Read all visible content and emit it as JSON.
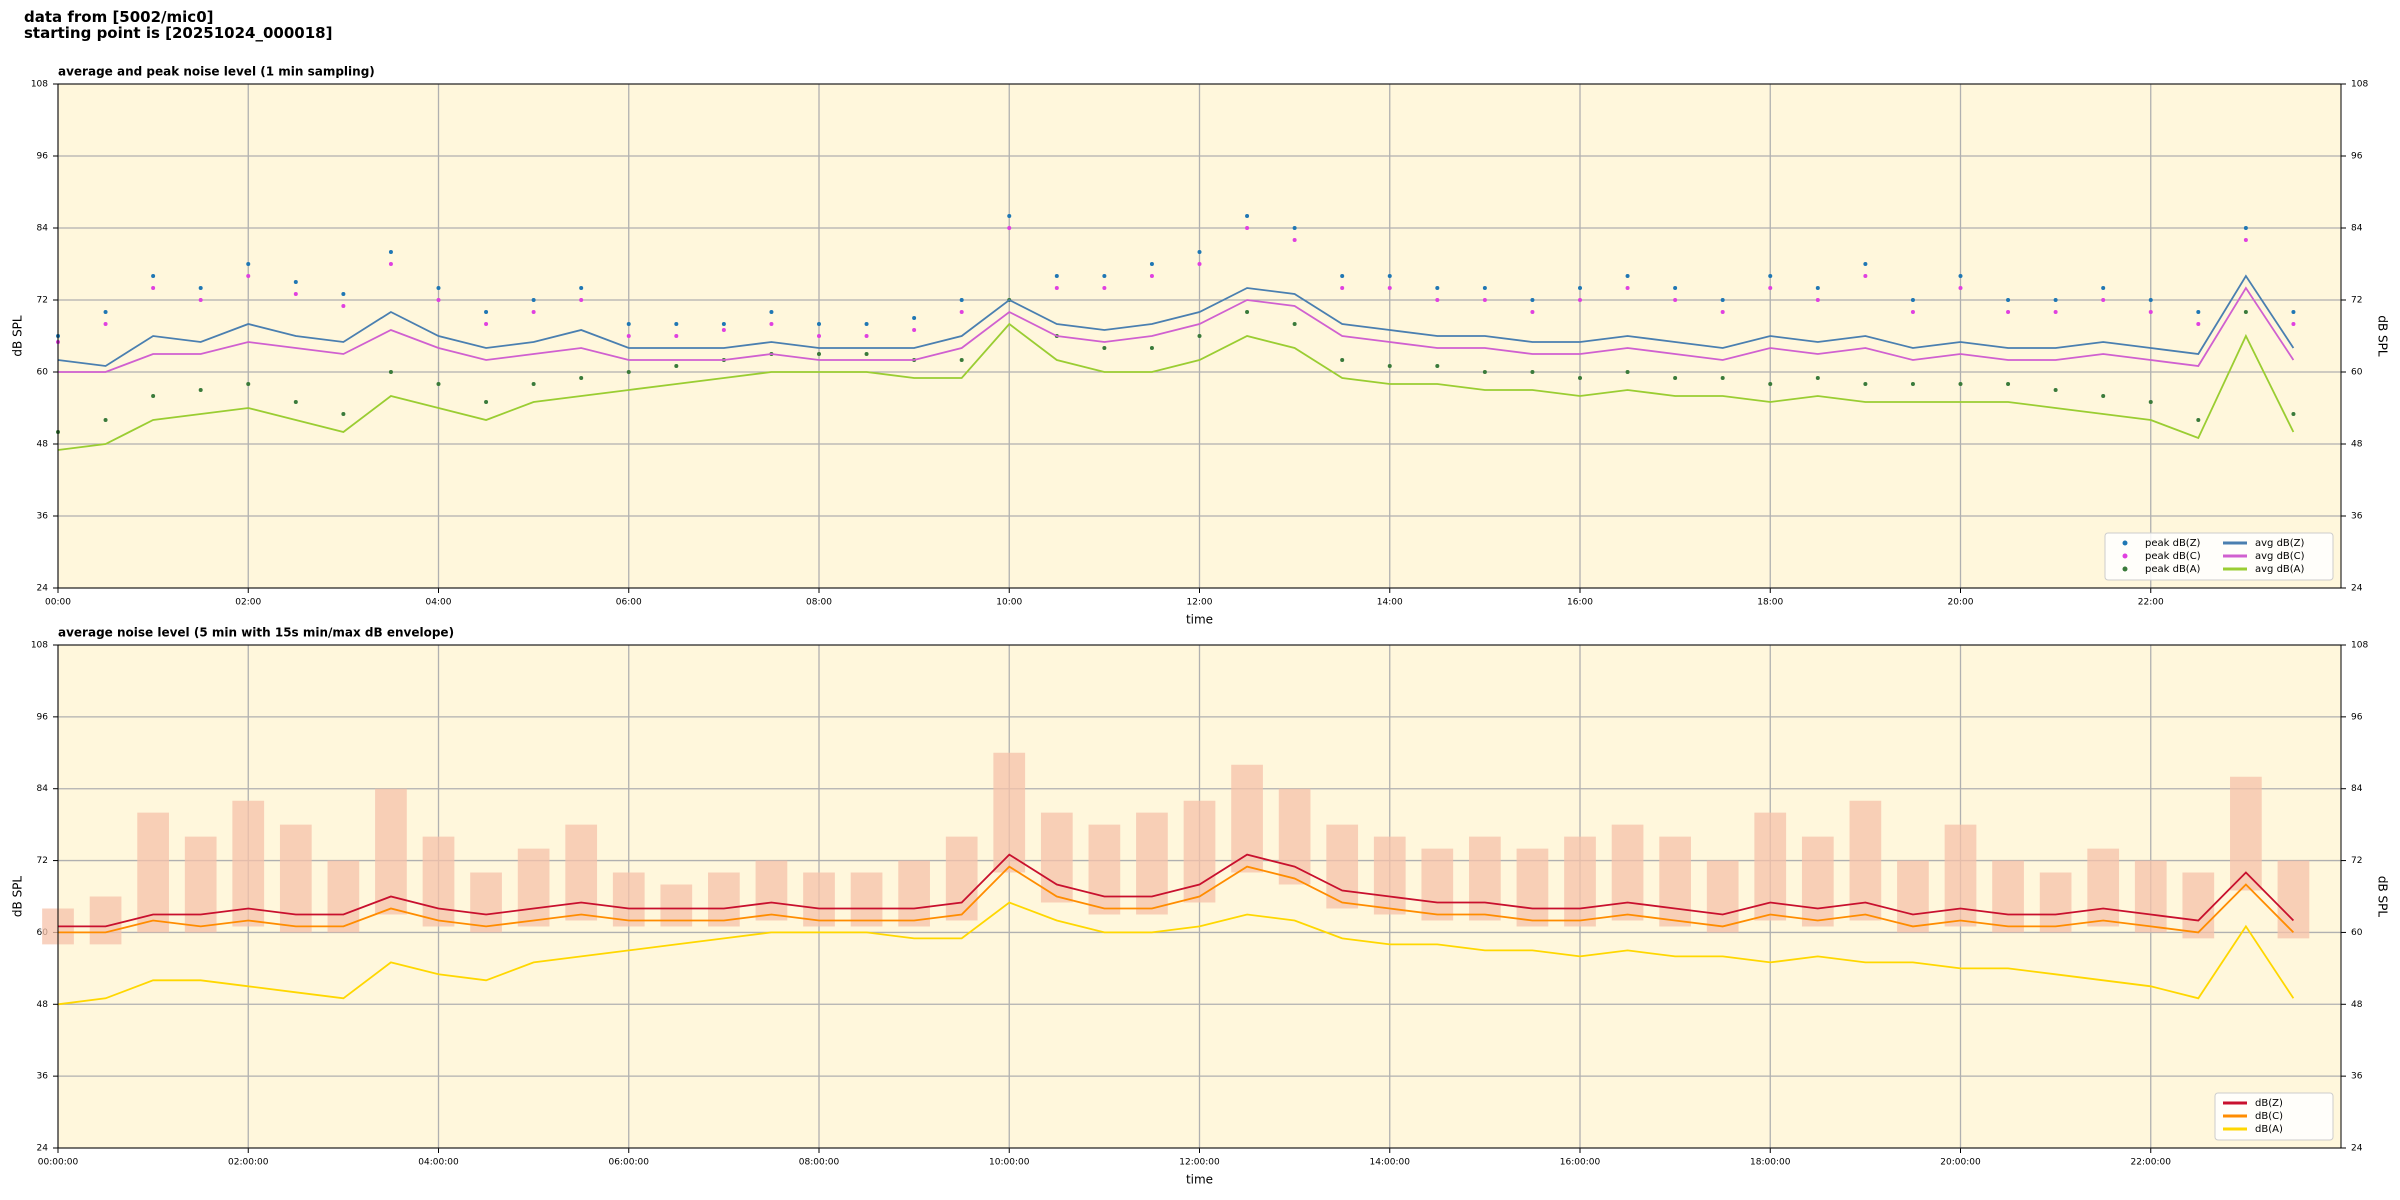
{
  "header": {
    "lines": [
      "data from [5002/mic0]",
      "starting point is [20251024_000018]"
    ]
  },
  "chart_data": [
    {
      "type": "line",
      "title": "average and peak noise level (1 min sampling)",
      "xlabel": "time",
      "ylabel": "dB SPL",
      "xlim": [
        0,
        24
      ],
      "ylim": [
        24,
        108
      ],
      "xticks": [
        {
          "value": 0,
          "label": "00:00"
        },
        {
          "value": 2,
          "label": "02:00"
        },
        {
          "value": 4,
          "label": "04:00"
        },
        {
          "value": 6,
          "label": "06:00"
        },
        {
          "value": 8,
          "label": "08:00"
        },
        {
          "value": 10,
          "label": "10:00"
        },
        {
          "value": 12,
          "label": "12:00"
        },
        {
          "value": 14,
          "label": "14:00"
        },
        {
          "value": 16,
          "label": "16:00"
        },
        {
          "value": 18,
          "label": "18:00"
        },
        {
          "value": 20,
          "label": "20:00"
        },
        {
          "value": 22,
          "label": "22:00"
        }
      ],
      "yticks": [
        24,
        36,
        48,
        60,
        72,
        84,
        96,
        108
      ],
      "grid": true,
      "legend": "lower right",
      "legend_columns": 2,
      "x": [
        0,
        0.5,
        1,
        1.5,
        2,
        2.5,
        3,
        3.5,
        4,
        4.5,
        5,
        5.5,
        6,
        6.5,
        7,
        7.5,
        8,
        8.5,
        9,
        9.5,
        10,
        10.5,
        11,
        11.5,
        12,
        12.5,
        13,
        13.5,
        14,
        14.5,
        15,
        15.5,
        16,
        16.5,
        17,
        17.5,
        18,
        18.5,
        19,
        19.5,
        20,
        20.5,
        21,
        21.5,
        22,
        22.5,
        23,
        23.5
      ],
      "series": [
        {
          "name": "peak dB(Z)",
          "color": "#1f77b4",
          "style": "points",
          "values": [
            66,
            70,
            76,
            74,
            78,
            75,
            73,
            80,
            74,
            70,
            72,
            74,
            68,
            68,
            68,
            70,
            68,
            68,
            69,
            72,
            86,
            76,
            76,
            78,
            80,
            86,
            84,
            76,
            76,
            74,
            74,
            72,
            74,
            76,
            74,
            72,
            76,
            74,
            78,
            72,
            76,
            72,
            72,
            74,
            72,
            70,
            84,
            70
          ]
        },
        {
          "name": "peak dB(C)",
          "color": "#e040e0",
          "style": "points",
          "values": [
            65,
            68,
            74,
            72,
            76,
            73,
            71,
            78,
            72,
            68,
            70,
            72,
            66,
            66,
            67,
            68,
            66,
            66,
            67,
            70,
            84,
            74,
            74,
            76,
            78,
            84,
            82,
            74,
            74,
            72,
            72,
            70,
            72,
            74,
            72,
            70,
            74,
            72,
            76,
            70,
            74,
            70,
            70,
            72,
            70,
            68,
            82,
            68
          ]
        },
        {
          "name": "peak dB(A)",
          "color": "#3a7a3a",
          "style": "points",
          "values": [
            50,
            52,
            56,
            57,
            58,
            55,
            53,
            60,
            58,
            55,
            58,
            59,
            60,
            61,
            62,
            63,
            63,
            63,
            62,
            62,
            72,
            66,
            64,
            64,
            66,
            70,
            68,
            62,
            61,
            61,
            60,
            60,
            59,
            60,
            59,
            59,
            58,
            59,
            58,
            58,
            58,
            58,
            57,
            56,
            55,
            52,
            70,
            53
          ]
        },
        {
          "name": "avg dB(Z)",
          "color": "#4a7fb0",
          "style": "line",
          "values": [
            62,
            61,
            66,
            65,
            68,
            66,
            65,
            70,
            66,
            64,
            65,
            67,
            64,
            64,
            64,
            65,
            64,
            64,
            64,
            66,
            72,
            68,
            67,
            68,
            70,
            74,
            73,
            68,
            67,
            66,
            66,
            65,
            65,
            66,
            65,
            64,
            66,
            65,
            66,
            64,
            65,
            64,
            64,
            65,
            64,
            63,
            76,
            64
          ]
        },
        {
          "name": "avg dB(C)",
          "color": "#d060d0",
          "style": "line",
          "values": [
            60,
            60,
            63,
            63,
            65,
            64,
            63,
            67,
            64,
            62,
            63,
            64,
            62,
            62,
            62,
            63,
            62,
            62,
            62,
            64,
            70,
            66,
            65,
            66,
            68,
            72,
            71,
            66,
            65,
            64,
            64,
            63,
            63,
            64,
            63,
            62,
            64,
            63,
            64,
            62,
            63,
            62,
            62,
            63,
            62,
            61,
            74,
            62
          ]
        },
        {
          "name": "avg dB(A)",
          "color": "#9acd32",
          "style": "line",
          "values": [
            47,
            48,
            52,
            53,
            54,
            52,
            50,
            56,
            54,
            52,
            55,
            56,
            57,
            58,
            59,
            60,
            60,
            60,
            59,
            59,
            68,
            62,
            60,
            60,
            62,
            66,
            64,
            59,
            58,
            58,
            57,
            57,
            56,
            57,
            56,
            56,
            55,
            56,
            55,
            55,
            55,
            55,
            54,
            53,
            52,
            49,
            66,
            50
          ]
        }
      ]
    },
    {
      "type": "line",
      "title": "average noise level (5 min with 15s min/max dB envelope)",
      "xlabel": "time",
      "ylabel": "dB SPL",
      "xlim": [
        0,
        24
      ],
      "ylim": [
        24,
        108
      ],
      "xticks": [
        {
          "value": 0,
          "label": "00:00:00"
        },
        {
          "value": 2,
          "label": "02:00:00"
        },
        {
          "value": 4,
          "label": "04:00:00"
        },
        {
          "value": 6,
          "label": "06:00:00"
        },
        {
          "value": 8,
          "label": "08:00:00"
        },
        {
          "value": 10,
          "label": "10:00:00"
        },
        {
          "value": 12,
          "label": "12:00:00"
        },
        {
          "value": 14,
          "label": "14:00:00"
        },
        {
          "value": 16,
          "label": "16:00:00"
        },
        {
          "value": 18,
          "label": "18:00:00"
        },
        {
          "value": 20,
          "label": "20:00:00"
        },
        {
          "value": 22,
          "label": "22:00:00"
        }
      ],
      "yticks": [
        24,
        36,
        48,
        60,
        72,
        84,
        96,
        108
      ],
      "grid": true,
      "legend": "lower right",
      "legend_columns": 1,
      "x": [
        0,
        0.5,
        1,
        1.5,
        2,
        2.5,
        3,
        3.5,
        4,
        4.5,
        5,
        5.5,
        6,
        6.5,
        7,
        7.5,
        8,
        8.5,
        9,
        9.5,
        10,
        10.5,
        11,
        11.5,
        12,
        12.5,
        13,
        13.5,
        14,
        14.5,
        15,
        15.5,
        16,
        16.5,
        17,
        17.5,
        18,
        18.5,
        19,
        19.5,
        20,
        20.5,
        21,
        21.5,
        22,
        22.5,
        23,
        23.5
      ],
      "envelope": {
        "color": "#f6c2aa",
        "low": [
          58,
          58,
          60,
          60,
          61,
          60,
          60,
          63,
          61,
          60,
          61,
          62,
          61,
          61,
          61,
          62,
          61,
          61,
          61,
          62,
          70,
          65,
          63,
          63,
          65,
          70,
          68,
          64,
          63,
          62,
          62,
          61,
          61,
          62,
          61,
          60,
          62,
          61,
          62,
          60,
          61,
          60,
          60,
          61,
          60,
          59,
          67,
          59
        ],
        "high": [
          64,
          66,
          80,
          76,
          82,
          78,
          72,
          84,
          76,
          70,
          74,
          78,
          70,
          68,
          70,
          72,
          70,
          70,
          72,
          76,
          90,
          80,
          78,
          80,
          82,
          88,
          84,
          78,
          76,
          74,
          76,
          74,
          76,
          78,
          76,
          72,
          80,
          76,
          82,
          72,
          78,
          72,
          70,
          74,
          72,
          70,
          86,
          72
        ]
      },
      "series": [
        {
          "name": "dB(Z)",
          "color": "#c8102e",
          "style": "line",
          "values": [
            61,
            61,
            63,
            63,
            64,
            63,
            63,
            66,
            64,
            63,
            64,
            65,
            64,
            64,
            64,
            65,
            64,
            64,
            64,
            65,
            73,
            68,
            66,
            66,
            68,
            73,
            71,
            67,
            66,
            65,
            65,
            64,
            64,
            65,
            64,
            63,
            65,
            64,
            65,
            63,
            64,
            63,
            63,
            64,
            63,
            62,
            70,
            62
          ]
        },
        {
          "name": "dB(C)",
          "color": "#ff8c00",
          "style": "line",
          "values": [
            60,
            60,
            62,
            61,
            62,
            61,
            61,
            64,
            62,
            61,
            62,
            63,
            62,
            62,
            62,
            63,
            62,
            62,
            62,
            63,
            71,
            66,
            64,
            64,
            66,
            71,
            69,
            65,
            64,
            63,
            63,
            62,
            62,
            63,
            62,
            61,
            63,
            62,
            63,
            61,
            62,
            61,
            61,
            62,
            61,
            60,
            68,
            60
          ]
        },
        {
          "name": "dB(A)",
          "color": "#ffd700",
          "style": "line",
          "values": [
            48,
            49,
            52,
            52,
            51,
            50,
            49,
            55,
            53,
            52,
            55,
            56,
            57,
            58,
            59,
            60,
            60,
            60,
            59,
            59,
            65,
            62,
            60,
            60,
            61,
            63,
            62,
            59,
            58,
            58,
            57,
            57,
            56,
            57,
            56,
            56,
            55,
            56,
            55,
            55,
            54,
            54,
            53,
            52,
            51,
            49,
            61,
            49
          ]
        }
      ]
    }
  ]
}
